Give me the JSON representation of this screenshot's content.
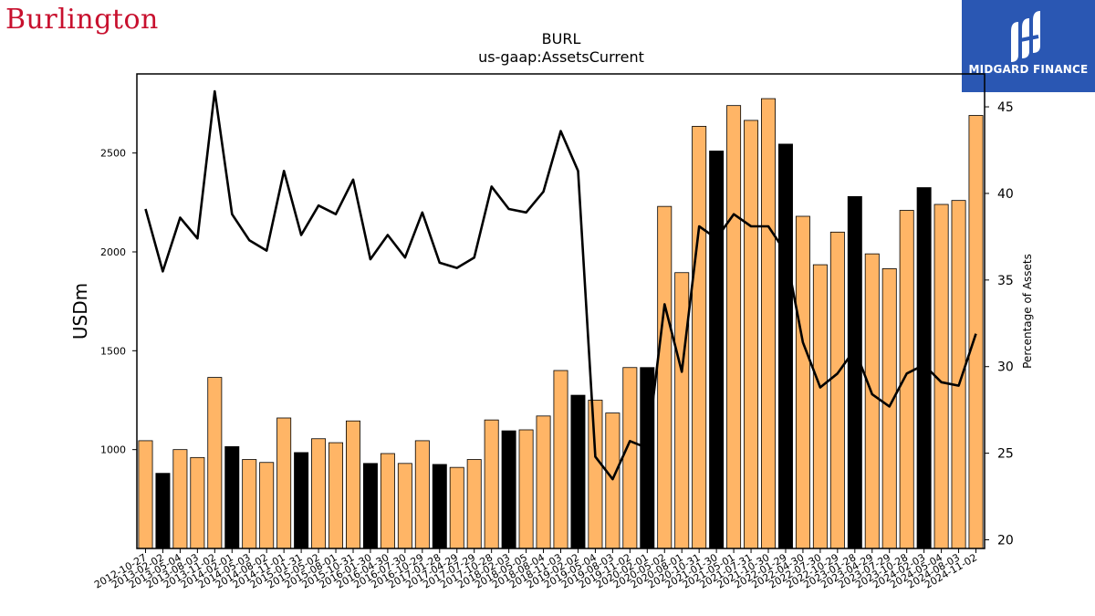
{
  "header": {
    "brand_logo_text": "Burlington",
    "finance_logo_text": "MIDGARD FINANCE"
  },
  "chart_data": {
    "type": "bar",
    "title": "BURL",
    "subtitle": "us-gaap:AssetsCurrent",
    "ylabel": "USDm",
    "y2label": "Percentage of Assets",
    "ylim": [
      500,
      2900
    ],
    "y2lim": [
      19.5,
      46.9
    ],
    "yticks": [
      1000,
      1500,
      2000,
      2500
    ],
    "y2ticks": [
      20,
      25,
      30,
      35,
      40,
      45
    ],
    "colors": {
      "bar_default": "#ffb566",
      "bar_highlight": "#000000",
      "line": "#000000"
    },
    "categories": [
      "2012-10-27",
      "2013-02-02",
      "2013-05-04",
      "2013-08-03",
      "2013-11-02",
      "2014-02-01",
      "2014-05-03",
      "2014-08-02",
      "2014-11-01",
      "2015-01-31",
      "2015-05-02",
      "2015-08-01",
      "2015-10-31",
      "2016-01-30",
      "2016-04-30",
      "2016-07-30",
      "2016-10-29",
      "2017-01-28",
      "2017-04-29",
      "2017-07-29",
      "2017-10-28",
      "2018-02-03",
      "2018-05-05",
      "2018-08-04",
      "2018-11-03",
      "2019-02-02",
      "2019-05-04",
      "2019-08-03",
      "2019-11-02",
      "2020-02-01",
      "2020-05-02",
      "2020-08-01",
      "2020-10-31",
      "2021-01-30",
      "2021-05-01",
      "2021-07-31",
      "2021-10-30",
      "2022-01-29",
      "2022-04-30",
      "2022-07-30",
      "2022-10-29",
      "2023-01-28",
      "2023-04-29",
      "2023-07-29",
      "2023-10-28",
      "2024-02-03",
      "2024-05-04",
      "2024-08-03",
      "2024-11-02"
    ],
    "series": [
      {
        "kind": "bar",
        "values": [
          1045,
          880,
          1000,
          960,
          1365,
          1015,
          950,
          935,
          1160,
          985,
          1055,
          1035,
          1145,
          930,
          980,
          930,
          1045,
          925,
          910,
          950,
          1150,
          1095,
          1100,
          1170,
          1400,
          1275,
          1250,
          1185,
          1415,
          1415,
          2230,
          1895,
          2635,
          2510,
          2740,
          2665,
          2775,
          2545,
          2180,
          1935,
          2100,
          2280,
          1990,
          1915,
          2210,
          2325,
          2240,
          2260,
          2690
        ],
        "highlight": [
          false,
          true,
          false,
          false,
          false,
          true,
          false,
          false,
          false,
          true,
          false,
          false,
          false,
          true,
          false,
          false,
          false,
          true,
          false,
          false,
          false,
          true,
          false,
          false,
          false,
          true,
          false,
          false,
          false,
          true,
          false,
          false,
          false,
          true,
          false,
          false,
          false,
          true,
          false,
          false,
          false,
          true,
          false,
          false,
          false,
          true,
          false,
          false,
          false
        ]
      },
      {
        "kind": "line",
        "axis": "right",
        "values": [
          39.1,
          35.5,
          38.6,
          37.4,
          45.9,
          38.8,
          37.3,
          36.7,
          41.3,
          37.6,
          39.3,
          38.8,
          40.8,
          36.2,
          37.6,
          36.3,
          38.9,
          36.0,
          35.7,
          36.3,
          40.4,
          39.1,
          38.9,
          40.1,
          43.6,
          41.3,
          24.8,
          23.5,
          25.7,
          25.3,
          33.6,
          29.7,
          38.1,
          37.4,
          38.8,
          38.1,
          38.1,
          36.6,
          31.4,
          28.8,
          29.6,
          31.0,
          28.4,
          27.7,
          29.6,
          30.1,
          29.1,
          28.9,
          31.9
        ]
      }
    ]
  }
}
